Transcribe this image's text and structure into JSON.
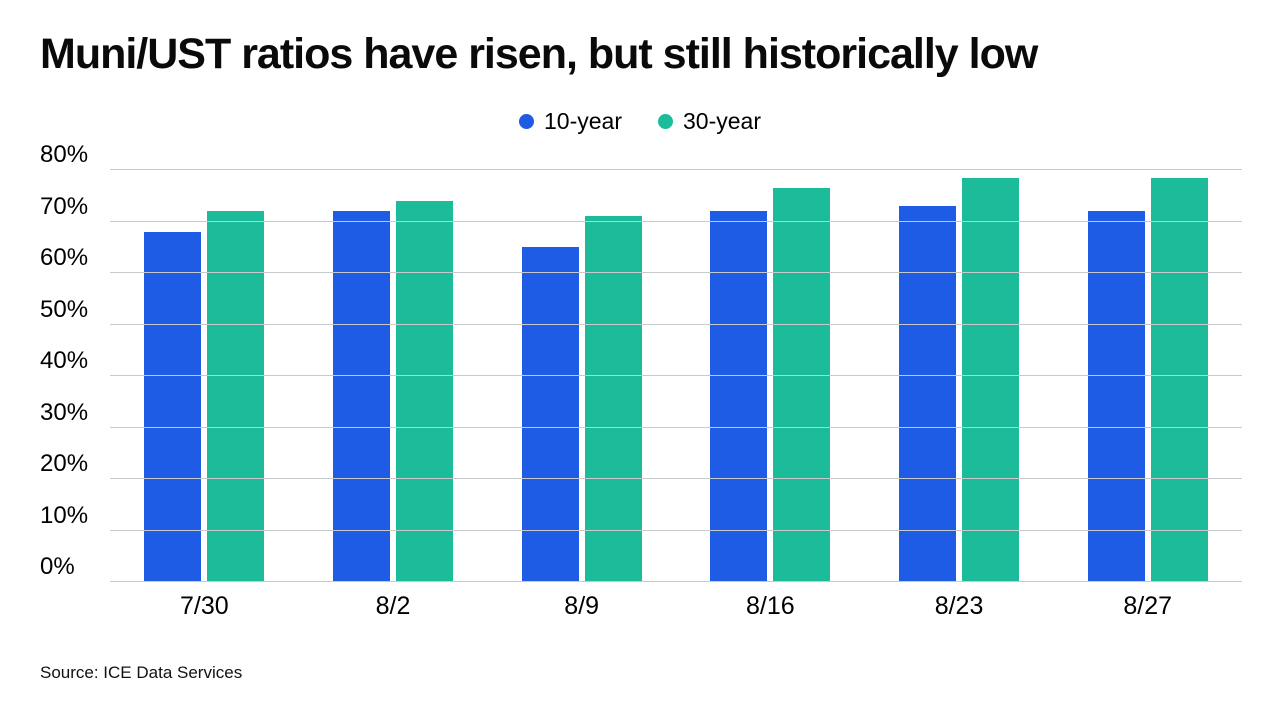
{
  "title": "Muni/UST ratios have risen, but still historically low",
  "source": "Source: ICE Data Services",
  "colors": {
    "blue": "#1f5ce6",
    "teal": "#1cbc9b",
    "grid": "#c7cacd",
    "text": "#000000",
    "background": "#ffffff"
  },
  "chart_data": {
    "type": "bar",
    "title": "Muni/UST ratios have risen, but still historically low",
    "categories": [
      "7/30",
      "8/2",
      "8/9",
      "8/16",
      "8/23",
      "8/27"
    ],
    "series": [
      {
        "name": "10-year",
        "color": "#1f5ce6",
        "values": [
          68,
          72,
          65,
          72,
          73,
          72
        ]
      },
      {
        "name": "30-year",
        "color": "#1cbc9b",
        "values": [
          72,
          74,
          71,
          76.5,
          78.5,
          78.5
        ]
      }
    ],
    "xlabel": "",
    "ylabel": "",
    "ylim": [
      0,
      80
    ],
    "ytick_step": 10,
    "ytick_suffix": "%",
    "grid": true,
    "legend_position": "top-center"
  }
}
